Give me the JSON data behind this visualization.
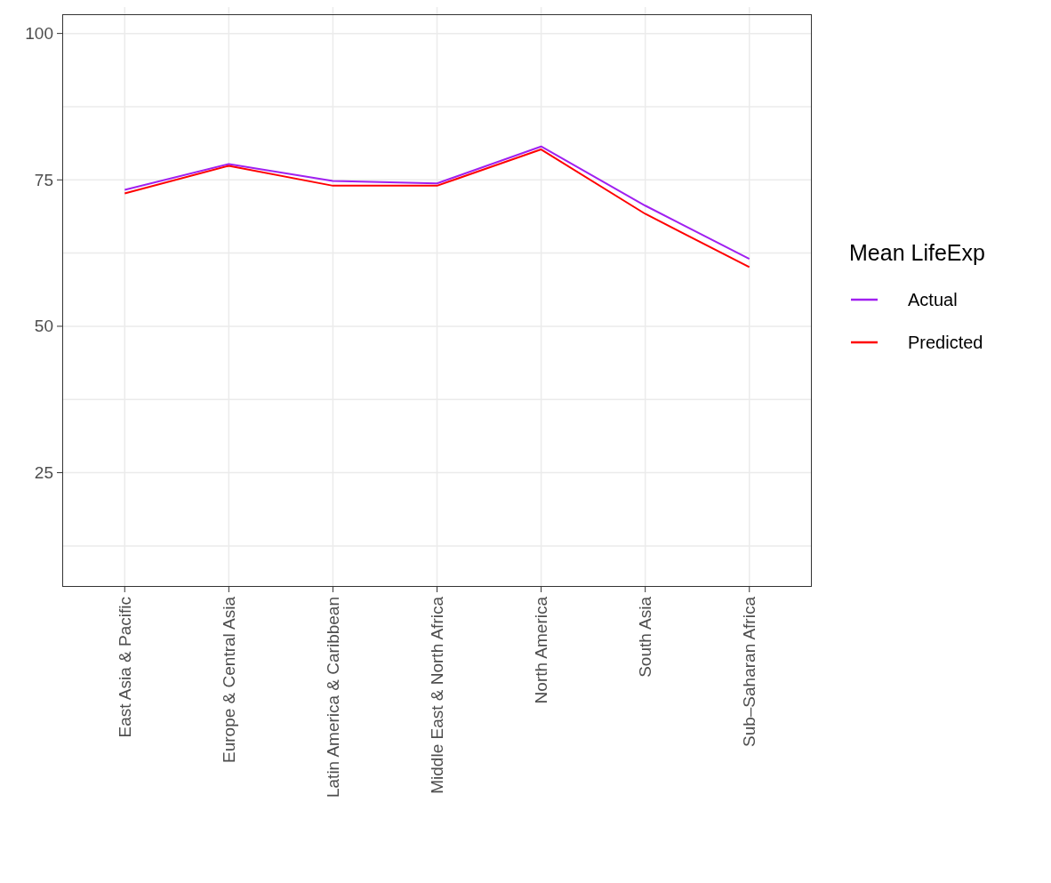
{
  "chart_data": {
    "type": "line",
    "categories": [
      "East Asia & Pacific",
      "Europe & Central Asia",
      "Latin America & Caribbean",
      "Middle East & North Africa",
      "North America",
      "South Asia",
      "Sub–Saharan Africa"
    ],
    "series": [
      {
        "name": "Actual",
        "color": "#a020f0",
        "values": [
          73.3,
          77.7,
          74.8,
          74.4,
          80.7,
          70.6,
          61.5
        ]
      },
      {
        "name": "Predicted",
        "color": "#ff0000",
        "values": [
          72.7,
          77.4,
          74.0,
          74.0,
          80.2,
          69.2,
          60.1
        ]
      }
    ],
    "legend_title": "Mean LifeExp",
    "legend": "right",
    "ylim": [
      5.5,
      104.5
    ],
    "yticks": [
      {
        "value": 12.5,
        "label": null
      },
      25,
      {
        "value": 37.5,
        "label": null
      },
      50,
      {
        "value": 62.5,
        "label": null
      },
      75,
      {
        "value": 87.5,
        "label": null
      },
      100
    ],
    "grid": true,
    "marker": "none",
    "line_style": "solid"
  }
}
